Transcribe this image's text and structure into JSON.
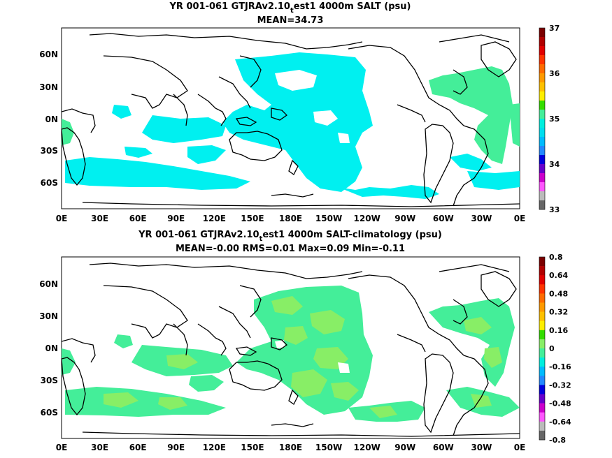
{
  "panels": [
    {
      "title_parts": [
        "YR 001-061 GTJRAv2.10",
        "t",
        "est1 4000m SALT (psu)"
      ],
      "subtitle": "MEAN=34.73",
      "lat_labels": [
        "60N",
        "30N",
        "0N",
        "30S",
        "60S"
      ],
      "lon_labels": [
        "0E",
        "30E",
        "60E",
        "90E",
        "120E",
        "150E",
        "180E",
        "150W",
        "120W",
        "90W",
        "60W",
        "30W",
        "0E"
      ],
      "colorbar": {
        "labels": [
          "37",
          "36",
          "35",
          "34",
          "33"
        ],
        "colors": [
          "#7a0000",
          "#b00000",
          "#e00000",
          "#ff3300",
          "#ff6a00",
          "#ff9900",
          "#ffc000",
          "#ffee00",
          "#33dd00",
          "#44ee99",
          "#00eedd",
          "#00ddee",
          "#00bbff",
          "#2288ff",
          "#0000dd",
          "#6600cc",
          "#cc00cc",
          "#ff55ff",
          "#bbbbbb",
          "#666666"
        ]
      },
      "fields": [
        {
          "name": "salt-34.5-35",
          "color": "#00f0f0"
        },
        {
          "name": "salt-35-35.2",
          "color": "#44ee99"
        }
      ]
    },
    {
      "title_parts": [
        "YR 001-061 GTJRAv2.10",
        "t",
        "est1 4000m SALT-climatology (psu)"
      ],
      "subtitle": "MEAN=-0.00   RMS=0.01   Max=0.09   Min=-0.11",
      "lat_labels": [
        "60N",
        "30N",
        "0N",
        "30S",
        "60S"
      ],
      "lon_labels": [
        "0E",
        "30E",
        "60E",
        "90E",
        "120E",
        "150E",
        "180E",
        "150W",
        "120W",
        "90W",
        "60W",
        "30W",
        "0E"
      ],
      "colorbar": {
        "labels": [
          "0.8",
          "0.64",
          "0.48",
          "0.32",
          "0.16",
          "0",
          "-0.16",
          "-0.32",
          "-0.48",
          "-0.64",
          "-0.8"
        ],
        "colors": [
          "#7a0000",
          "#b00000",
          "#e00000",
          "#ff3300",
          "#ff6a00",
          "#ff9900",
          "#ffc000",
          "#ffee00",
          "#33dd00",
          "#88ee66",
          "#44ee99",
          "#00eedd",
          "#00bbff",
          "#2288ff",
          "#0000dd",
          "#6600cc",
          "#cc00cc",
          "#ff55ff",
          "#bbbbbb",
          "#666666"
        ]
      },
      "fields": [
        {
          "name": "diff-0-0.08",
          "color": "#88ee66"
        },
        {
          "name": "diff-minus0.08-0",
          "color": "#44ee99"
        }
      ]
    }
  ]
}
